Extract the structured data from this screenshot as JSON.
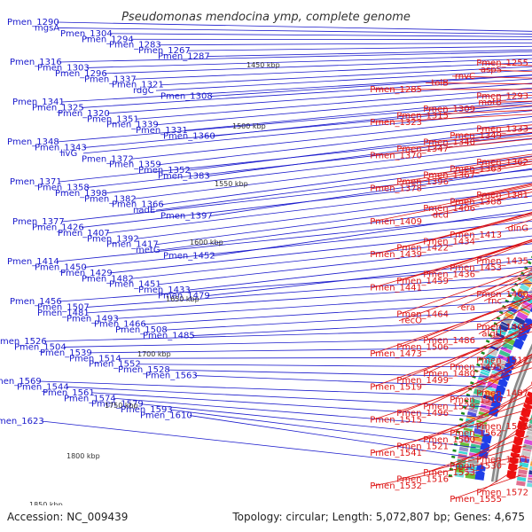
{
  "title": "Pseudomonas mendocina ymp, complete genome",
  "footer": {
    "accession": "Accession: NC_009439",
    "topology": "Topology: circular; Length: 5,072,807 bp; Genes: 4,675"
  },
  "colors": {
    "left_labels": "#1a1acc",
    "right_labels": "#dd1111",
    "backbone": "#888888",
    "forward_arrows": "#1f3fe8",
    "reverse_arrows": "#ee1111",
    "ticks": "#1a8a1a"
  },
  "kbp_ticks": [
    "1450 kbp",
    "1500 kbp",
    "1550 kbp",
    "1600 kbp",
    "1650 kbp",
    "1700 kbp",
    "1750 kbp",
    "1800 kbp",
    "1850 kbp"
  ],
  "left_labels": [
    "Pmen_1290",
    "mgsA",
    "Pmen_1304",
    "Pmen_1294",
    "Pmen_1283",
    "Pmen_1267",
    "Pmen_1287",
    "Pmen_1316",
    "Pmen_1303",
    "Pmen_1296",
    "Pmen_1337",
    "Pmen_1321",
    "rdgC",
    "Pmen_1308",
    "Pmen_1341",
    "Pmen_1325",
    "Pmen_1320",
    "Pmen_1351",
    "Pmen_1339",
    "Pmen_1331",
    "Pmen_1360",
    "Pmen_1348",
    "Pmen_1343",
    "livG",
    "Pmen_1372",
    "Pmen_1359",
    "Pmen_1352",
    "Pmen_1383",
    "Pmen_1371",
    "Pmen_1358",
    "Pmen_1398",
    "Pmen_1382",
    "Pmen_1366",
    "nadE",
    "Pmen_1397",
    "Pmen_1377",
    "Pmen_1426",
    "Pmen_1407",
    "Pmen_1392",
    "Pmen_1417",
    "metG",
    "Pmen_1452",
    "Pmen_1414",
    "Pmen_1450",
    "Pmen_1429",
    "Pmen_1482",
    "Pmen_1451",
    "Pmen_1433",
    "Pmen_1479",
    "Pmen_1456",
    "Pmen_1507",
    "Pmen_1481",
    "Pmen_1493",
    "Pmen_1466",
    "Pmen_1508",
    "Pmen_1485",
    "Pmen_1526",
    "Pmen_1504",
    "Pmen_1539",
    "Pmen_1514",
    "Pmen_1552",
    "Pmen_1528",
    "Pmen_1563",
    "Pmen_1569",
    "Pmen_1544",
    "Pmen_1561",
    "Pmen_1574",
    "Pmen_1579",
    "Pmen_1593",
    "Pmen_1610",
    "Pmen_1623"
  ],
  "right_labels": [
    "Pmen_1255",
    "aspS",
    "rnvC",
    "tolB",
    "Pmen_1285",
    "Pmen_1293",
    "motB",
    "Pmen_1309",
    "Pmen_1315",
    "Pmen_1323",
    "Pmen_1333",
    "Pmen_1349",
    "Pmen_1340",
    "Pmen_1347",
    "Pmen_1370",
    "Pmen_1362",
    "Pmen_1363",
    "Pmen_1367",
    "Pmen_1396",
    "Pmen_1378",
    "Pmen_1381",
    "Pmen_1388",
    "Pmen_1406",
    "dcd",
    "Pmen_1409",
    "dinG",
    "Pmen_1413",
    "Pmen_1434",
    "Pmen_1422",
    "Pmen_1439",
    "Pmen_1435",
    "Pmen_1453",
    "Pmen_1436",
    "Pmen_1459",
    "Pmen_1441",
    "Pmen_1460",
    "rnc",
    "era",
    "Pmen_1464",
    "recO",
    "Pmen_1465",
    "algU",
    "Pmen_1486",
    "Pmen_1506",
    "Pmen_1473",
    "Pmen_1512",
    "Pmen_1495",
    "Pmen_1480",
    "Pmen_1499",
    "Pmen_1519",
    "Pmen_1487",
    "Pmen_1510",
    "Pmen_1529",
    "Pmen_1496",
    "Pmen_1515",
    "Pmen_1535",
    "Pmen_1562",
    "Pmen_1500",
    "Pmen_1521",
    "Pmen_1541",
    "Pmen_1511",
    "Pmen_1530",
    "Pmen_1553",
    "Pmen_1516",
    "Pmen_1532",
    "Pmen_1572",
    "Pmen_1555"
  ]
}
